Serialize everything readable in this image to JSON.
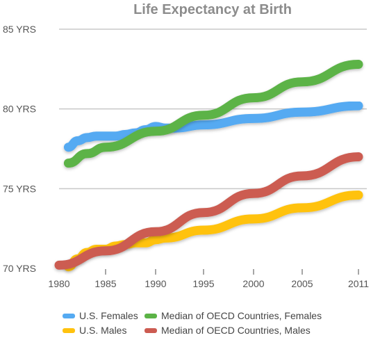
{
  "chart_data": {
    "type": "line",
    "title": "Life Expectancy at Birth",
    "xlabel": "",
    "ylabel": "",
    "xlim": [
      1980,
      2011
    ],
    "ylim": [
      70,
      85
    ],
    "x_ticks": [
      1980,
      1985,
      1990,
      1995,
      2000,
      2005,
      2011
    ],
    "x_tick_labels": [
      "1980",
      "1985",
      "1990",
      "1995",
      "2000",
      "2005",
      "2011"
    ],
    "y_ticks": [
      70,
      75,
      80,
      85
    ],
    "y_tick_labels": [
      "70 YRS",
      "75 YRS",
      "80 YRS",
      "85 YRS"
    ],
    "grid": "horizontal",
    "legend_position": "bottom",
    "series": [
      {
        "name": "U.S. Females",
        "color": "#55aaf2",
        "x": [
          1981,
          1982,
          1983,
          1984,
          1985,
          1986,
          1987,
          1988,
          1989,
          1990,
          1991,
          1992,
          1995,
          2000,
          2005,
          2011
        ],
        "y": [
          77.6,
          78.0,
          78.2,
          78.3,
          78.3,
          78.3,
          78.4,
          78.5,
          78.7,
          78.9,
          78.8,
          78.8,
          79.0,
          79.4,
          79.8,
          80.2
        ]
      },
      {
        "name": "Median of OECD Countries, Females",
        "color": "#5bb346",
        "x": [
          1981,
          1983,
          1985,
          1990,
          1995,
          2000,
          2005,
          2011
        ],
        "y": [
          76.6,
          77.2,
          77.6,
          78.6,
          79.6,
          80.7,
          81.7,
          82.8
        ]
      },
      {
        "name": "U.S. Males",
        "color": "#ffc20e",
        "x": [
          1981,
          1982,
          1983,
          1984,
          1985,
          1986,
          1987,
          1988,
          1989,
          1990,
          1991,
          1995,
          2000,
          2005,
          2011
        ],
        "y": [
          70.1,
          70.6,
          71.0,
          71.2,
          71.2,
          71.4,
          71.5,
          71.6,
          71.6,
          71.8,
          71.9,
          72.4,
          73.1,
          73.8,
          74.6
        ]
      },
      {
        "name": "Median of OECD Countries, Males",
        "color": "#cc5b51",
        "x": [
          1980,
          1985,
          1990,
          1995,
          2000,
          2005,
          2011
        ],
        "y": [
          70.2,
          71.1,
          72.3,
          73.5,
          74.7,
          75.8,
          77.0
        ]
      }
    ],
    "legend": [
      {
        "label": "U.S. Females",
        "color": "#55aaf2"
      },
      {
        "label": "Median of OECD Countries, Females",
        "color": "#5bb346"
      },
      {
        "label": "U.S. Males",
        "color": "#ffc20e"
      },
      {
        "label": "Median of OECD Countries, Males",
        "color": "#cc5b51"
      }
    ],
    "colors": {
      "axis": "#a6a6a6",
      "grid": "#c8c8c8",
      "title": "#8c8c8c",
      "tick_text": "#555555"
    }
  }
}
